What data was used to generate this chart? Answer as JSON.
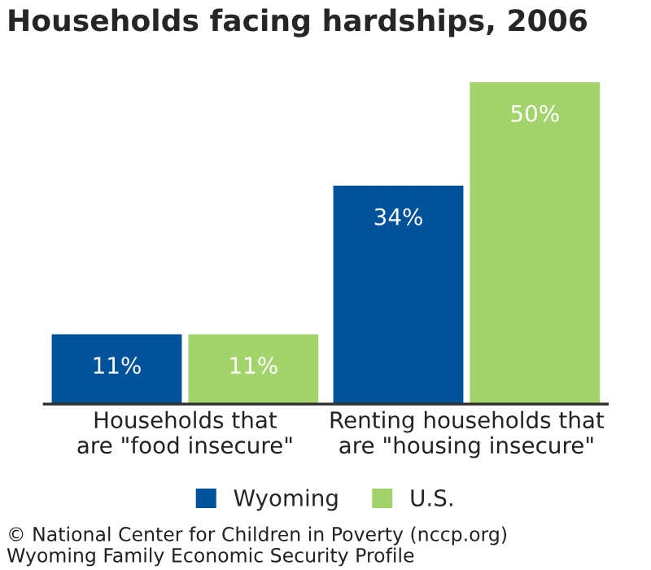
{
  "chart_data": {
    "type": "bar",
    "title": "Households facing hardships, 2006",
    "categories": [
      "Households that\nare \"food insecure\"",
      "Renting households that\nare \"housing insecure\""
    ],
    "series": [
      {
        "name": "Wyoming",
        "color": "#00529b",
        "values": [
          11,
          34
        ],
        "value_labels": [
          "11%",
          "34%"
        ]
      },
      {
        "name": "U.S.",
        "color": "#a3d36b",
        "values": [
          11,
          50
        ],
        "value_labels": [
          "11%",
          "50%"
        ]
      }
    ],
    "legend": "bottom",
    "annotations": [
      "© National Center for Children in Poverty (nccp.org)",
      "Wyoming Family Economic Security Profile"
    ]
  }
}
